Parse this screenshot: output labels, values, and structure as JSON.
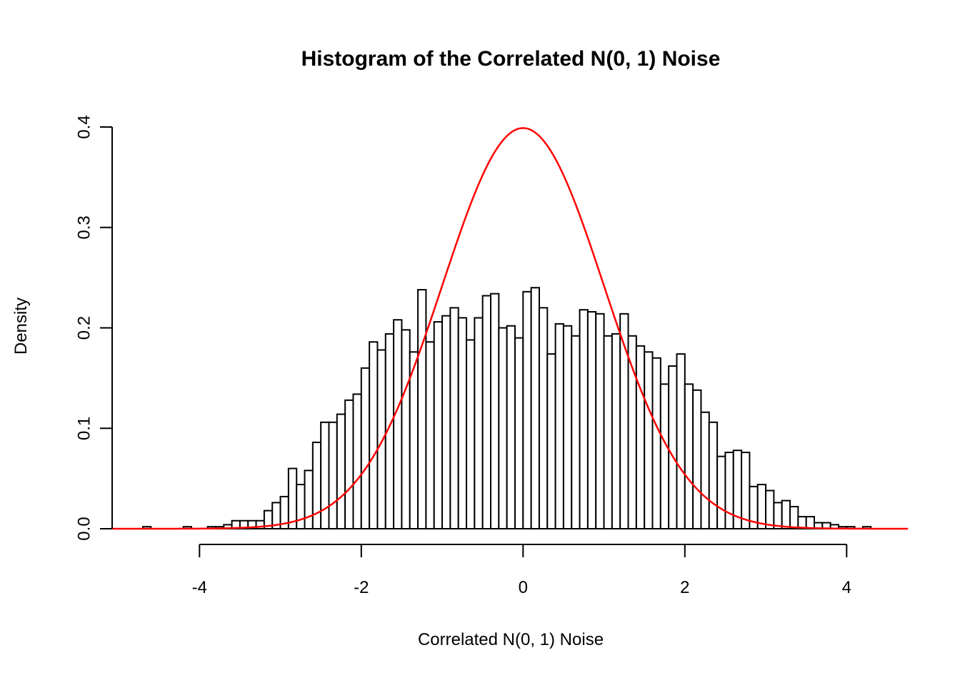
{
  "title": "Histogram of the Correlated N(0, 1) Noise",
  "x_axis": {
    "label": "Correlated N(0, 1) Noise",
    "ticks": [
      "-4",
      "-2",
      "0",
      "2",
      "4"
    ],
    "tick_values": [
      -4,
      -2,
      0,
      2,
      4
    ]
  },
  "y_axis": {
    "label": "Density",
    "ticks": [
      "0.0",
      "0.1",
      "0.2",
      "0.3",
      "0.4"
    ],
    "tick_values": [
      0.0,
      0.1,
      0.2,
      0.3,
      0.4
    ]
  },
  "colors": {
    "curve": "#ff0000",
    "bar_fill": "#ffffff",
    "bar_border": "#000000",
    "axis": "#000000",
    "background": "#ffffff"
  },
  "chart_data": {
    "type": "bar",
    "subtype": "histogram",
    "title": "Histogram of the Correlated N(0, 1) Noise",
    "xlabel": "Correlated N(0, 1) Noise",
    "ylabel": "Density",
    "xlim": [
      -5.07,
      4.76
    ],
    "ylim": [
      0,
      0.4
    ],
    "grid": false,
    "legend": "none",
    "bin_start": -4.7,
    "bin_width": 0.1,
    "densities": [
      0.002,
      0,
      0,
      0,
      0,
      0.002,
      0,
      0,
      0.002,
      0.002,
      0.004,
      0.008,
      0.008,
      0.008,
      0.008,
      0.018,
      0.026,
      0.032,
      0.06,
      0.044,
      0.058,
      0.086,
      0.106,
      0.106,
      0.114,
      0.128,
      0.134,
      0.16,
      0.186,
      0.178,
      0.194,
      0.208,
      0.198,
      0.176,
      0.238,
      0.186,
      0.206,
      0.212,
      0.22,
      0.21,
      0.188,
      0.21,
      0.232,
      0.234,
      0.2,
      0.202,
      0.19,
      0.236,
      0.24,
      0.22,
      0.174,
      0.204,
      0.202,
      0.192,
      0.218,
      0.216,
      0.214,
      0.192,
      0.194,
      0.214,
      0.192,
      0.182,
      0.176,
      0.17,
      0.144,
      0.162,
      0.174,
      0.144,
      0.138,
      0.116,
      0.106,
      0.072,
      0.076,
      0.078,
      0.076,
      0.042,
      0.044,
      0.038,
      0.026,
      0.028,
      0.022,
      0.012,
      0.012,
      0.006,
      0.006,
      0.004,
      0.002,
      0.002,
      0,
      0.002
    ],
    "overlay_curve": {
      "name": "standard-normal-pdf",
      "mean": 0,
      "sd": 1,
      "peak_density": 0.3989,
      "color": "#ff0000",
      "x_range": [
        -5.07,
        4.76
      ]
    }
  }
}
